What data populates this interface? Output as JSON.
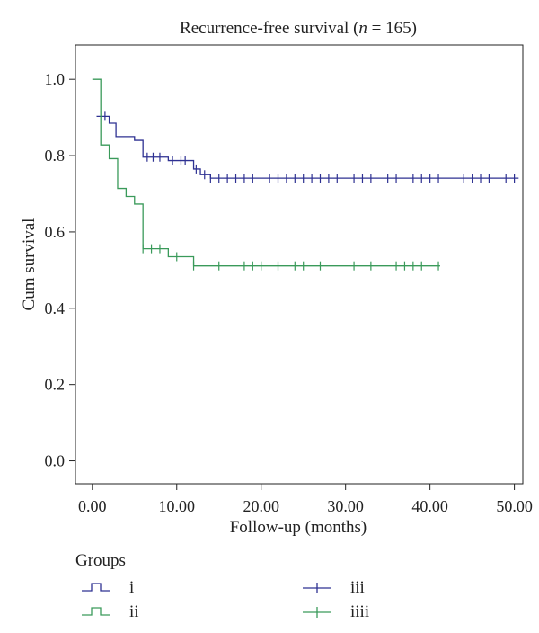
{
  "chart_data": {
    "type": "line",
    "subtype": "kaplan-meier step",
    "title": "Recurrence-free survival (n = 165)",
    "title_parts": {
      "prefix": "Recurrence-free survival (",
      "italic": "n",
      "suffix": " = 165)"
    },
    "xlabel": "Follow-up (months)",
    "ylabel": "Cum survival",
    "xlim": [
      -2,
      51
    ],
    "ylim": [
      -0.06,
      1.09
    ],
    "x_ticks": [
      0,
      10,
      20,
      30,
      40,
      50
    ],
    "x_tick_labels": [
      "0.00",
      "10.00",
      "20.00",
      "30.00",
      "40.00",
      "50.00"
    ],
    "y_ticks": [
      0.0,
      0.2,
      0.4,
      0.6,
      0.8,
      1.0
    ],
    "y_tick_labels": [
      "0.0",
      "0.2",
      "0.4",
      "0.6",
      "0.8",
      "1.0"
    ],
    "grid": false,
    "legend_placement": "bottom",
    "legend_title": "Groups",
    "legend": [
      {
        "label": "i",
        "marker": "step",
        "color": "#2e3192"
      },
      {
        "label": "ii",
        "marker": "step",
        "color": "#3a9a5a"
      },
      {
        "label": "iii",
        "marker": "censor",
        "color": "#2e3192"
      },
      {
        "label": "iiii",
        "marker": "censor",
        "color": "#3a9a5a"
      }
    ],
    "series": [
      {
        "color": "#2e3192",
        "steps": [
          [
            0.5,
            0.903
          ],
          [
            2.0,
            0.885
          ],
          [
            2.8,
            0.85
          ],
          [
            5.0,
            0.84
          ],
          [
            6.0,
            0.796
          ],
          [
            9.0,
            0.787
          ],
          [
            12.0,
            0.765
          ],
          [
            12.8,
            0.75
          ],
          [
            14.0,
            0.741
          ]
        ],
        "end_x": 50.5,
        "censored": [
          [
            1.5,
            0.903
          ],
          [
            6.5,
            0.796
          ],
          [
            7.2,
            0.796
          ],
          [
            8.0,
            0.796
          ],
          [
            9.5,
            0.787
          ],
          [
            10.5,
            0.787
          ],
          [
            11.0,
            0.787
          ],
          [
            12.3,
            0.765
          ],
          [
            13.3,
            0.75
          ],
          [
            14.0,
            0.741
          ],
          [
            15.0,
            0.741
          ],
          [
            16.0,
            0.741
          ],
          [
            17.0,
            0.741
          ],
          [
            18.0,
            0.741
          ],
          [
            19.0,
            0.741
          ],
          [
            21.0,
            0.741
          ],
          [
            22.0,
            0.741
          ],
          [
            23.0,
            0.741
          ],
          [
            24.0,
            0.741
          ],
          [
            25.0,
            0.741
          ],
          [
            26.0,
            0.741
          ],
          [
            27.0,
            0.741
          ],
          [
            28.0,
            0.741
          ],
          [
            29.0,
            0.741
          ],
          [
            31.0,
            0.741
          ],
          [
            32.0,
            0.741
          ],
          [
            33.0,
            0.741
          ],
          [
            35.0,
            0.741
          ],
          [
            36.0,
            0.741
          ],
          [
            38.0,
            0.741
          ],
          [
            39.0,
            0.741
          ],
          [
            40.0,
            0.741
          ],
          [
            41.0,
            0.741
          ],
          [
            44.0,
            0.741
          ],
          [
            45.0,
            0.741
          ],
          [
            46.0,
            0.741
          ],
          [
            47.0,
            0.741
          ],
          [
            49.0,
            0.741
          ],
          [
            50.0,
            0.741
          ]
        ]
      },
      {
        "color": "#3a9a5a",
        "steps": [
          [
            0.0,
            1.0
          ],
          [
            1.0,
            0.828
          ],
          [
            2.0,
            0.792
          ],
          [
            3.0,
            0.714
          ],
          [
            4.0,
            0.693
          ],
          [
            5.0,
            0.673
          ],
          [
            6.0,
            0.556
          ],
          [
            9.0,
            0.535
          ],
          [
            12.0,
            0.511
          ]
        ],
        "end_x": 41.2,
        "censored": [
          [
            6.0,
            0.556
          ],
          [
            7.0,
            0.556
          ],
          [
            8.0,
            0.556
          ],
          [
            10.0,
            0.535
          ],
          [
            12.0,
            0.511
          ],
          [
            15.0,
            0.511
          ],
          [
            18.0,
            0.511
          ],
          [
            19.0,
            0.511
          ],
          [
            20.0,
            0.511
          ],
          [
            22.0,
            0.511
          ],
          [
            24.0,
            0.511
          ],
          [
            25.0,
            0.511
          ],
          [
            27.0,
            0.511
          ],
          [
            31.0,
            0.511
          ],
          [
            33.0,
            0.511
          ],
          [
            36.0,
            0.511
          ],
          [
            37.0,
            0.511
          ],
          [
            38.0,
            0.511
          ],
          [
            39.0,
            0.511
          ],
          [
            41.0,
            0.511
          ]
        ]
      }
    ]
  }
}
